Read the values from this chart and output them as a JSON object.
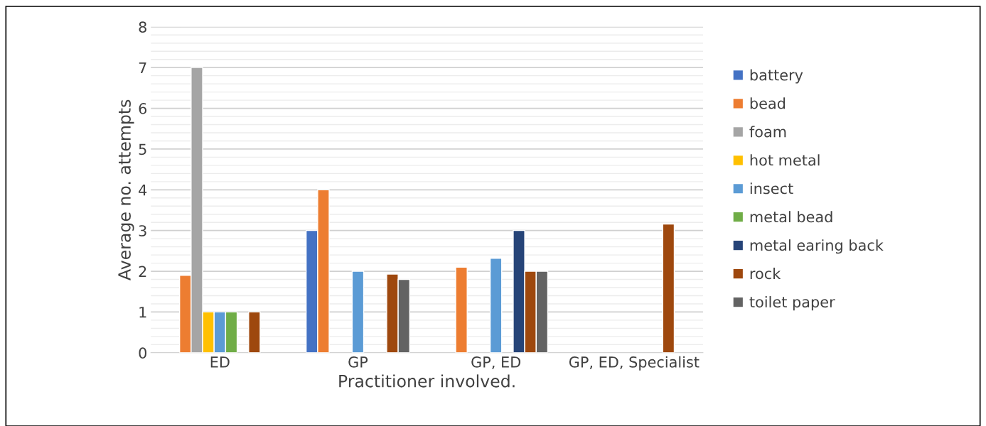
{
  "chart_data": {
    "type": "bar",
    "xlabel": "Practitioner involved.",
    "ylabel": "Average no. attempts",
    "categories": [
      "ED",
      "GP",
      "GP, ED",
      "GP, ED, Specialist"
    ],
    "series": [
      {
        "name": "battery",
        "color": "#4472c4",
        "values": [
          null,
          3,
          null,
          null
        ]
      },
      {
        "name": "bead",
        "color": "#ed7d31",
        "values": [
          1.9,
          4.0,
          2.1,
          null
        ]
      },
      {
        "name": "foam",
        "color": "#a5a5a5",
        "values": [
          7,
          null,
          null,
          null
        ]
      },
      {
        "name": "hot metal",
        "color": "#ffc000",
        "values": [
          1,
          null,
          null,
          null
        ]
      },
      {
        "name": "insect",
        "color": "#5b9bd5",
        "values": [
          1,
          2,
          2.32,
          null
        ]
      },
      {
        "name": "metal bead",
        "color": "#70ad47",
        "values": [
          1,
          null,
          null,
          null
        ]
      },
      {
        "name": "metal earing back",
        "color": "#264478",
        "values": [
          null,
          null,
          3,
          null
        ]
      },
      {
        "name": "rock",
        "color": "#9e480e",
        "values": [
          1,
          1.93,
          2.0,
          3.16
        ]
      },
      {
        "name": "toilet paper",
        "color": "#636363",
        "values": [
          null,
          1.8,
          2,
          null
        ]
      }
    ],
    "ylim": [
      0,
      8
    ],
    "yticks": [
      0,
      1,
      2,
      3,
      4,
      5,
      6,
      7,
      8
    ],
    "grid": "y",
    "legend": "right"
  }
}
